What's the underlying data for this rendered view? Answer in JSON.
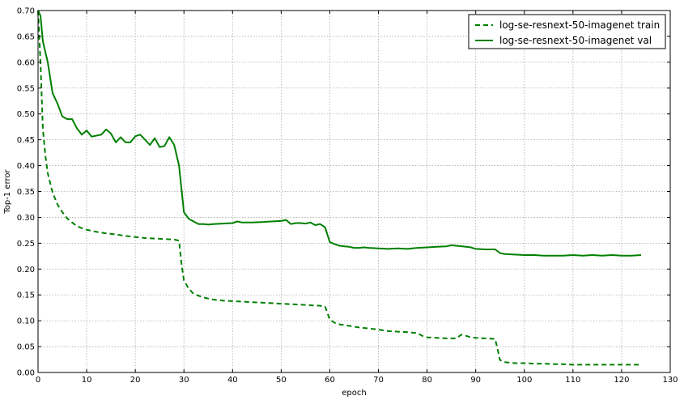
{
  "chart_data": {
    "type": "line",
    "xlabel": "epoch",
    "ylabel": "Top-1 error",
    "xlim": [
      0,
      130
    ],
    "ylim": [
      0,
      0.7
    ],
    "xticks": [
      "0",
      "10",
      "20",
      "30",
      "40",
      "50",
      "60",
      "70",
      "80",
      "90",
      "100",
      "110",
      "120",
      "130"
    ],
    "yticks": [
      "0.00",
      "0.05",
      "0.10",
      "0.15",
      "0.20",
      "0.25",
      "0.30",
      "0.35",
      "0.40",
      "0.45",
      "0.50",
      "0.55",
      "0.60",
      "0.65",
      "0.70"
    ],
    "grid": true,
    "legend_position": "top-right",
    "colors": {
      "series": "#008000"
    },
    "series": [
      {
        "name": "log-se-resnext-50-imagenet train",
        "style": "dashed",
        "x": [
          0,
          0.5,
          1,
          1.5,
          2,
          3,
          4,
          5,
          6,
          7,
          8,
          9,
          10,
          12,
          14,
          16,
          18,
          20,
          22,
          24,
          26,
          28,
          29,
          29.5,
          30,
          31,
          32,
          34,
          36,
          38,
          40,
          42,
          44,
          46,
          48,
          50,
          52,
          54,
          56,
          58,
          59,
          59.5,
          60,
          61,
          62,
          64,
          66,
          68,
          70,
          72,
          74,
          76,
          78,
          79,
          80,
          82,
          84,
          86,
          87,
          88,
          89,
          90,
          92,
          94,
          94.5,
          95,
          96,
          97,
          98,
          100,
          102,
          104,
          106,
          108,
          110,
          112,
          114,
          116,
          118,
          120,
          122,
          124
        ],
        "values": [
          0.7,
          0.6,
          0.47,
          0.42,
          0.385,
          0.348,
          0.325,
          0.31,
          0.298,
          0.29,
          0.283,
          0.279,
          0.276,
          0.272,
          0.269,
          0.267,
          0.264,
          0.262,
          0.26,
          0.259,
          0.258,
          0.257,
          0.255,
          0.21,
          0.178,
          0.162,
          0.152,
          0.145,
          0.141,
          0.139,
          0.138,
          0.137,
          0.136,
          0.135,
          0.134,
          0.133,
          0.132,
          0.131,
          0.13,
          0.129,
          0.128,
          0.115,
          0.102,
          0.096,
          0.093,
          0.09,
          0.087,
          0.085,
          0.083,
          0.08,
          0.079,
          0.078,
          0.076,
          0.071,
          0.068,
          0.067,
          0.066,
          0.066,
          0.073,
          0.071,
          0.068,
          0.067,
          0.066,
          0.065,
          0.045,
          0.024,
          0.02,
          0.019,
          0.018,
          0.018,
          0.017,
          0.017,
          0.016,
          0.016,
          0.015,
          0.015,
          0.015,
          0.015,
          0.015,
          0.015,
          0.015,
          0.015
        ]
      },
      {
        "name": "log-se-resnext-50-imagenet val",
        "style": "solid",
        "x": [
          0,
          0.5,
          1,
          2,
          3,
          4,
          5,
          6,
          7,
          8,
          9,
          10,
          11,
          12,
          13,
          14,
          15,
          16,
          17,
          18,
          19,
          20,
          21,
          22,
          23,
          24,
          25,
          26,
          27,
          28,
          29,
          30,
          31,
          32,
          33,
          34,
          35,
          36,
          38,
          40,
          41,
          42,
          44,
          46,
          48,
          50,
          51,
          52,
          53,
          54,
          55,
          56,
          57,
          58,
          59,
          60,
          61,
          62,
          63,
          64,
          65,
          66,
          67,
          68,
          70,
          72,
          74,
          76,
          78,
          80,
          82,
          84,
          85,
          86,
          88,
          89,
          90,
          92,
          94,
          95,
          96,
          98,
          100,
          102,
          104,
          106,
          108,
          110,
          112,
          114,
          116,
          118,
          120,
          122,
          124
        ],
        "values": [
          0.7,
          0.69,
          0.64,
          0.6,
          0.54,
          0.52,
          0.495,
          0.49,
          0.49,
          0.472,
          0.46,
          0.468,
          0.456,
          0.458,
          0.46,
          0.47,
          0.462,
          0.445,
          0.455,
          0.445,
          0.445,
          0.457,
          0.46,
          0.45,
          0.44,
          0.453,
          0.436,
          0.438,
          0.455,
          0.44,
          0.4,
          0.31,
          0.297,
          0.292,
          0.287,
          0.287,
          0.286,
          0.287,
          0.288,
          0.289,
          0.292,
          0.29,
          0.29,
          0.291,
          0.292,
          0.293,
          0.295,
          0.287,
          0.289,
          0.289,
          0.288,
          0.29,
          0.285,
          0.287,
          0.281,
          0.252,
          0.248,
          0.245,
          0.244,
          0.243,
          0.241,
          0.241,
          0.242,
          0.241,
          0.24,
          0.239,
          0.24,
          0.239,
          0.241,
          0.242,
          0.243,
          0.244,
          0.246,
          0.245,
          0.243,
          0.242,
          0.239,
          0.238,
          0.238,
          0.231,
          0.229,
          0.228,
          0.227,
          0.227,
          0.226,
          0.226,
          0.226,
          0.227,
          0.226,
          0.227,
          0.226,
          0.227,
          0.226,
          0.226,
          0.227
        ]
      }
    ]
  }
}
